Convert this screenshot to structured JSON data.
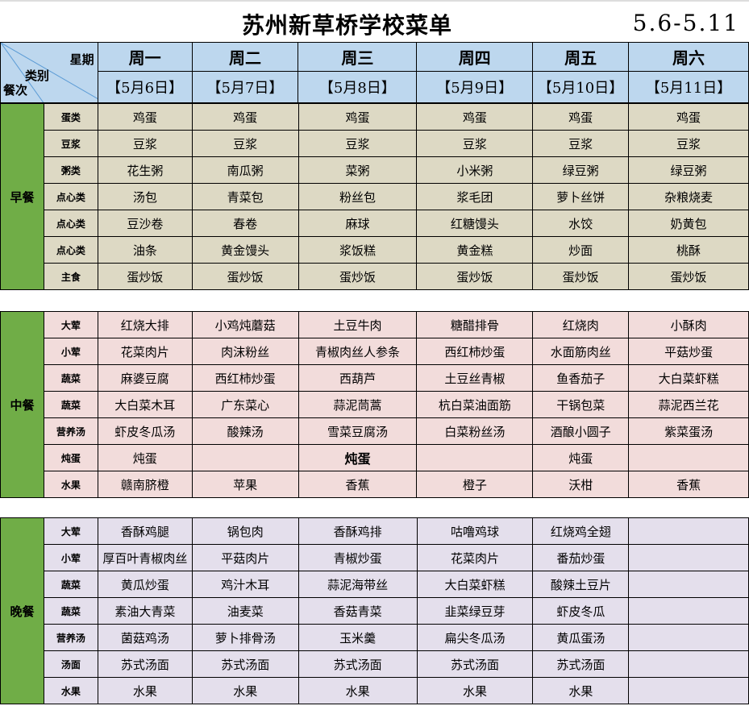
{
  "title": "苏州新草桥学校菜单",
  "date_range": "5.6-5.11",
  "corner": {
    "week_label": "星期",
    "category_label": "类别",
    "meal_label": "餐次"
  },
  "days": [
    "周一",
    "周二",
    "周三",
    "周四",
    "周五",
    "周六"
  ],
  "dates": [
    "【5月6日】",
    "【5月7日】",
    "【5月8日】",
    "【5月9日】",
    "【5月10日】",
    "【5月11日】"
  ],
  "colors": {
    "header": "#bdd7ee",
    "meal_cell": "#70ad47",
    "breakfast": "#ddd9c4",
    "lunch": "#f2dcdb",
    "dinner": "#e4dfec"
  },
  "sections": [
    {
      "meal": "早餐",
      "key": "breakfast",
      "rows": [
        {
          "category": "蛋类",
          "items": [
            "鸡蛋",
            "鸡蛋",
            "鸡蛋",
            "鸡蛋",
            "鸡蛋",
            "鸡蛋"
          ]
        },
        {
          "category": "豆浆",
          "items": [
            "豆浆",
            "豆浆",
            "豆浆",
            "豆浆",
            "豆浆",
            "豆浆"
          ]
        },
        {
          "category": "粥类",
          "items": [
            "花生粥",
            "南瓜粥",
            "菜粥",
            "小米粥",
            "绿豆粥",
            "绿豆粥"
          ]
        },
        {
          "category": "点心类",
          "items": [
            "汤包",
            "青菜包",
            "粉丝包",
            "浆毛团",
            "萝卜丝饼",
            "杂粮烧麦"
          ]
        },
        {
          "category": "点心类",
          "items": [
            "豆沙卷",
            "春卷",
            "麻球",
            "红糖馒头",
            "水饺",
            "奶黄包"
          ]
        },
        {
          "category": "点心类",
          "items": [
            "油条",
            "黄金馒头",
            "浆饭糕",
            "黄金糕",
            "炒面",
            "桃酥"
          ]
        },
        {
          "category": "主食",
          "items": [
            "蛋炒饭",
            "蛋炒饭",
            "蛋炒饭",
            "蛋炒饭",
            "蛋炒饭",
            "蛋炒饭"
          ]
        }
      ]
    },
    {
      "meal": "中餐",
      "key": "lunch",
      "rows": [
        {
          "category": "大荤",
          "items": [
            "红烧大排",
            "小鸡炖蘑菇",
            "土豆牛肉",
            "糖醋排骨",
            "红烧肉",
            "小酥肉"
          ]
        },
        {
          "category": "小荤",
          "items": [
            "花菜肉片",
            "肉沫粉丝",
            "青椒肉丝人参条",
            "西红柿炒蛋",
            "水面筋肉丝",
            "平菇炒蛋"
          ]
        },
        {
          "category": "蔬菜",
          "items": [
            "麻婆豆腐",
            "西红柿炒蛋",
            "西葫芦",
            "土豆丝青椒",
            "鱼香茄子",
            "大白菜虾糕"
          ]
        },
        {
          "category": "蔬菜",
          "items": [
            "大白菜木耳",
            "广东菜心",
            "蒜泥茼蒿",
            "杭白菜油面筋",
            "干锅包菜",
            "蒜泥西兰花"
          ]
        },
        {
          "category": "营养汤",
          "items": [
            "虾皮冬瓜汤",
            "酸辣汤",
            "雪菜豆腐汤",
            "白菜粉丝汤",
            "酒酿小圆子",
            "紫菜蛋汤"
          ]
        },
        {
          "category": "炖蛋",
          "items": [
            "炖蛋",
            "",
            "炖蛋",
            "",
            "炖蛋",
            ""
          ]
        },
        {
          "category": "水果",
          "items": [
            "赣南脐橙",
            "苹果",
            "香蕉",
            "橙子",
            "沃柑",
            "香蕉"
          ]
        }
      ]
    },
    {
      "meal": "晚餐",
      "key": "dinner",
      "rows": [
        {
          "category": "大荤",
          "items": [
            "香酥鸡腿",
            "锅包肉",
            "香酥鸡排",
            "咕噜鸡球",
            "红烧鸡全翅",
            ""
          ]
        },
        {
          "category": "小荤",
          "items": [
            "厚百叶青椒肉丝",
            "平菇肉片",
            "青椒炒蛋",
            "花菜肉片",
            "番茄炒蛋",
            ""
          ]
        },
        {
          "category": "蔬菜",
          "items": [
            "黄瓜炒蛋",
            "鸡汁木耳",
            "蒜泥海带丝",
            "大白菜虾糕",
            "酸辣土豆片",
            ""
          ]
        },
        {
          "category": "蔬菜",
          "items": [
            "素油大青菜",
            "油麦菜",
            "香菇青菜",
            "韭菜绿豆芽",
            "虾皮冬瓜",
            ""
          ]
        },
        {
          "category": "营养汤",
          "items": [
            "菌菇鸡汤",
            "萝卜排骨汤",
            "玉米羹",
            "扁尖冬瓜汤",
            "黄瓜蛋汤",
            ""
          ]
        },
        {
          "category": "汤面",
          "items": [
            "苏式汤面",
            "苏式汤面",
            "苏式汤面",
            "苏式汤面",
            "苏式汤面",
            ""
          ]
        },
        {
          "category": "水果",
          "items": [
            "水果",
            "水果",
            "水果",
            "水果",
            "水果",
            ""
          ]
        }
      ]
    }
  ]
}
